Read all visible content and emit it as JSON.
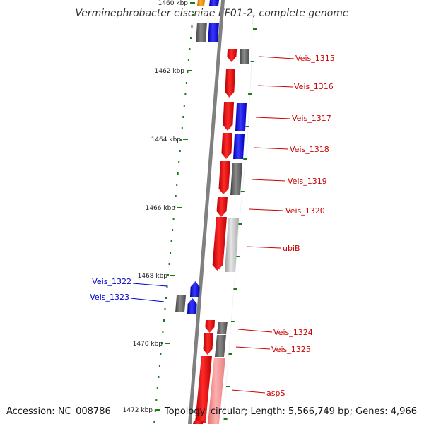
{
  "title": "Verminephrobacter eiseniae EF01-2, complete genome",
  "accession": "Accession: NC_008786",
  "topology": "Topology: circular; Length: 5,566,749 bp; Genes: 4,966",
  "colors": {
    "forward_gene": "#ff0000",
    "reverse_gene": "#0000ff",
    "other_gene": "#666666",
    "light_gene": "#c8c8c8",
    "pink_gene": "#ff9999",
    "orange_gene": "#ff9900",
    "backbone": "#808080",
    "tick": "#1a7a1a",
    "red_label": "#cc0000",
    "blue_label": "#0000cc"
  },
  "kbp_ticks": [
    "1460 kbp",
    "1462 kbp",
    "1464 kbp",
    "1466 kbp",
    "1468 kbp",
    "1470 kbp",
    "1472 kbp"
  ],
  "gene_labels": [
    {
      "name": "Veis_1315",
      "color": "red"
    },
    {
      "name": "Veis_1316",
      "color": "red"
    },
    {
      "name": "Veis_1317",
      "color": "red"
    },
    {
      "name": "Veis_1318",
      "color": "red"
    },
    {
      "name": "Veis_1319",
      "color": "red"
    },
    {
      "name": "Veis_1320",
      "color": "red"
    },
    {
      "name": "ubiB",
      "color": "red"
    },
    {
      "name": "Veis_1322",
      "color": "blue"
    },
    {
      "name": "Veis_1323",
      "color": "blue"
    },
    {
      "name": "Veis_1324",
      "color": "red"
    },
    {
      "name": "Veis_1325",
      "color": "red"
    },
    {
      "name": "aspS",
      "color": "red"
    }
  ]
}
